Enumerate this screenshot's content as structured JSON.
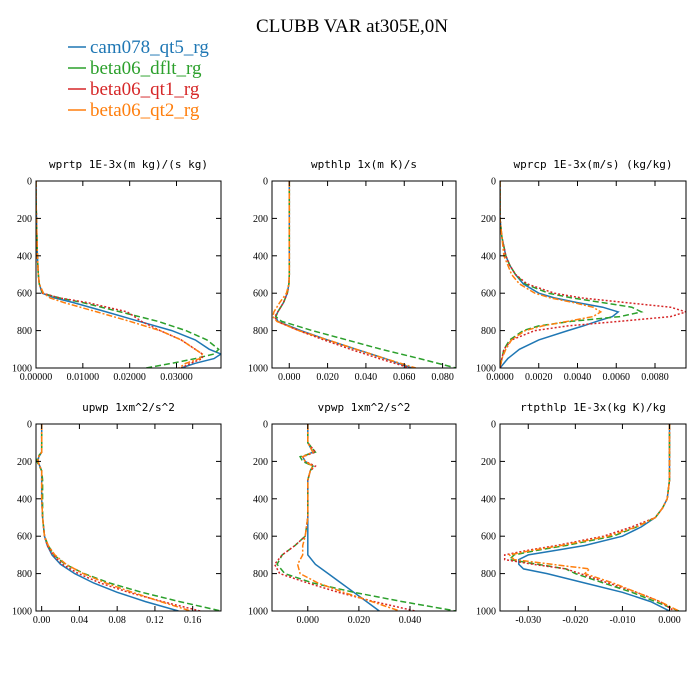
{
  "figure": {
    "title": "CLUBB VAR at305E,0N"
  },
  "legend": [
    {
      "label": "cam078_qt5_rg",
      "color": "#1f77b4",
      "dash": "solid"
    },
    {
      "label": "beta06_dflt_rg",
      "color": "#2ca02c",
      "dash": "dashed"
    },
    {
      "label": "beta06_qt1_rg",
      "color": "#d62728",
      "dash": "dotted"
    },
    {
      "label": "beta06_qt2_rg",
      "color": "#ff7f0e",
      "dash": "dashdot"
    }
  ],
  "chart_data": [
    {
      "type": "line",
      "title": "wprtp  1E-3x(m kg)/(s kg)",
      "xlim": [
        0.0,
        0.0395
      ],
      "ylim": [
        1000,
        0
      ],
      "y_inverted": true,
      "xticks": [
        0.0,
        0.01,
        0.02,
        0.03
      ],
      "xtick_labels": [
        "0.00000",
        "0.01000",
        "0.02000",
        "0.03000"
      ],
      "yticks": [
        0,
        200,
        400,
        600,
        800,
        1000
      ],
      "ytick_labels": [
        "0",
        "200",
        "400",
        "600",
        "800",
        "1000"
      ],
      "y": [
        0,
        100,
        200,
        300,
        400,
        500,
        550,
        600,
        625,
        650,
        700,
        750,
        800,
        850,
        900,
        925,
        950,
        975,
        1000
      ],
      "series": [
        {
          "name": "cam078_qt5_rg",
          "x": [
            0.0,
            0.0,
            0.0001,
            0.0002,
            0.0003,
            0.0005,
            0.0007,
            0.0013,
            0.004,
            0.008,
            0.015,
            0.022,
            0.029,
            0.034,
            0.037,
            0.0395,
            0.038,
            0.034,
            0.031
          ]
        },
        {
          "name": "beta06_dflt_rg",
          "x": [
            0.0,
            0.0,
            0.0001,
            0.0002,
            0.0003,
            0.0005,
            0.0007,
            0.0014,
            0.005,
            0.01,
            0.018,
            0.026,
            0.032,
            0.0365,
            0.039,
            0.038,
            0.034,
            0.029,
            0.0235
          ]
        },
        {
          "name": "beta06_qt1_rg",
          "x": [
            0.0,
            0.0,
            0.0001,
            0.0002,
            0.0003,
            0.0005,
            0.0007,
            0.0014,
            0.005,
            0.011,
            0.0195,
            0.0225,
            0.0265,
            0.031,
            0.034,
            0.0355,
            0.0355,
            0.033,
            0.031
          ]
        },
        {
          "name": "beta06_qt2_rg",
          "x": [
            0.0,
            0.0,
            0.0001,
            0.0002,
            0.0003,
            0.0005,
            0.0007,
            0.0016,
            0.003,
            0.006,
            0.013,
            0.02,
            0.0265,
            0.031,
            0.034,
            0.0355,
            0.035,
            0.032,
            0.0305
          ]
        }
      ]
    },
    {
      "type": "line",
      "title": "wpthlp  1x(m K)/s",
      "xlim": [
        -0.009,
        0.087
      ],
      "ylim": [
        1000,
        0
      ],
      "y_inverted": true,
      "xticks": [
        0.0,
        0.02,
        0.04,
        0.06,
        0.08
      ],
      "xtick_labels": [
        "0.000",
        "0.020",
        "0.040",
        "0.060",
        "0.080"
      ],
      "yticks": [
        0,
        200,
        400,
        600,
        800,
        1000
      ],
      "ytick_labels": [
        "0",
        "200",
        "400",
        "600",
        "800",
        "1000"
      ],
      "y": [
        0,
        100,
        200,
        300,
        400,
        500,
        550,
        600,
        650,
        700,
        725,
        750,
        800,
        850,
        900,
        950,
        1000
      ],
      "series": [
        {
          "name": "cam078_qt5_rg",
          "x": [
            0.0,
            0.0,
            0.0,
            0.0,
            0.0,
            0.0,
            -0.0002,
            -0.001,
            -0.003,
            -0.006,
            -0.007,
            -0.006,
            0.006,
            0.02,
            0.035,
            0.05,
            0.064
          ]
        },
        {
          "name": "beta06_dflt_rg",
          "x": [
            0.0,
            0.0,
            0.0,
            0.0,
            0.0,
            0.0,
            -0.0002,
            -0.001,
            -0.003,
            -0.006,
            -0.007,
            -0.004,
            0.012,
            0.03,
            0.048,
            0.068,
            0.087
          ]
        },
        {
          "name": "beta06_qt1_rg",
          "x": [
            0.0,
            0.0,
            0.0,
            0.0,
            0.0,
            0.0,
            -0.0002,
            -0.001,
            -0.003,
            -0.006,
            -0.0075,
            -0.0065,
            0.005,
            0.018,
            0.032,
            0.047,
            0.063
          ]
        },
        {
          "name": "beta06_qt2_rg",
          "x": [
            0.0,
            0.0,
            0.0,
            0.0,
            0.0,
            0.0,
            -0.0002,
            -0.0015,
            -0.005,
            -0.008,
            -0.0085,
            -0.0065,
            0.005,
            0.02,
            0.035,
            0.05,
            0.066
          ]
        }
      ]
    },
    {
      "type": "line",
      "title": "wprcp  1E-3x(m/s) (kg/kg)",
      "xlim": [
        0.0,
        0.0096
      ],
      "ylim": [
        1000,
        0
      ],
      "y_inverted": true,
      "xticks": [
        0.0,
        0.002,
        0.004,
        0.006,
        0.008
      ],
      "xtick_labels": [
        "0.0000",
        "0.0020",
        "0.0040",
        "0.0060",
        "0.0080"
      ],
      "yticks": [
        0,
        200,
        400,
        600,
        800,
        1000
      ],
      "ytick_labels": [
        "0",
        "200",
        "400",
        "600",
        "800",
        "1000"
      ],
      "y": [
        0,
        200,
        300,
        400,
        450,
        500,
        550,
        600,
        625,
        650,
        675,
        700,
        725,
        750,
        775,
        800,
        850,
        900,
        950,
        1000
      ],
      "series": [
        {
          "name": "cam078_qt5_rg",
          "x": [
            0.0,
            0.0,
            0.0001,
            0.0003,
            0.0005,
            0.0008,
            0.0012,
            0.002,
            0.0028,
            0.004,
            0.0053,
            0.0061,
            0.0058,
            0.005,
            0.0043,
            0.0035,
            0.002,
            0.001,
            0.0004,
            0.0
          ]
        },
        {
          "name": "beta06_dflt_rg",
          "x": [
            0.0,
            0.0,
            0.0001,
            0.0003,
            0.0005,
            0.0008,
            0.0013,
            0.0025,
            0.0037,
            0.0053,
            0.0068,
            0.0073,
            0.0062,
            0.0037,
            0.002,
            0.0012,
            0.0005,
            0.0002,
            0.0001,
            0.0
          ]
        },
        {
          "name": "beta06_qt1_rg",
          "x": [
            0.0,
            0.0,
            0.0001,
            0.0003,
            0.0005,
            0.0008,
            0.0014,
            0.0028,
            0.0042,
            0.0065,
            0.0088,
            0.0096,
            0.0088,
            0.0062,
            0.0035,
            0.0018,
            0.0006,
            0.0002,
            0.0001,
            0.0
          ]
        },
        {
          "name": "beta06_qt2_rg",
          "x": [
            0.0,
            0.0,
            0.0001,
            0.0002,
            0.0004,
            0.0006,
            0.001,
            0.0018,
            0.0026,
            0.0038,
            0.0048,
            0.0052,
            0.0048,
            0.0035,
            0.0022,
            0.0013,
            0.0006,
            0.0003,
            0.0001,
            0.0
          ]
        }
      ]
    },
    {
      "type": "line",
      "title": "upwp  1xm^2/s^2",
      "xlim": [
        -0.006,
        0.19
      ],
      "ylim": [
        1000,
        0
      ],
      "y_inverted": true,
      "xticks": [
        0.0,
        0.04,
        0.08,
        0.12,
        0.16
      ],
      "xtick_labels": [
        "0.00",
        "0.04",
        "0.08",
        "0.12",
        "0.16"
      ],
      "yticks": [
        0,
        200,
        400,
        600,
        800,
        1000
      ],
      "ytick_labels": [
        "0",
        "200",
        "400",
        "600",
        "800",
        "1000"
      ],
      "y": [
        0,
        150,
        175,
        200,
        250,
        300,
        400,
        500,
        600,
        650,
        700,
        750,
        800,
        850,
        900,
        950,
        1000
      ],
      "series": [
        {
          "name": "cam078_qt5_rg",
          "x": [
            0.0,
            0.0,
            -0.003,
            -0.004,
            0.0,
            0.0,
            0.0,
            0.001,
            0.003,
            0.006,
            0.011,
            0.02,
            0.035,
            0.055,
            0.08,
            0.11,
            0.145
          ]
        },
        {
          "name": "beta06_dflt_rg",
          "x": [
            0.0,
            0.0,
            -0.004,
            -0.005,
            0.0,
            0.001,
            0.001,
            0.001,
            0.003,
            0.007,
            0.013,
            0.025,
            0.045,
            0.072,
            0.106,
            0.146,
            0.19
          ]
        },
        {
          "name": "beta06_qt1_rg",
          "x": [
            0.0,
            0.0,
            -0.003,
            -0.004,
            0.0,
            0.0,
            0.0,
            0.001,
            0.003,
            0.006,
            0.012,
            0.022,
            0.039,
            0.062,
            0.092,
            0.128,
            0.168
          ]
        },
        {
          "name": "beta06_qt2_rg",
          "x": [
            0.0,
            0.0,
            -0.003,
            -0.004,
            0.0,
            0.0,
            0.0,
            0.001,
            0.003,
            0.007,
            0.014,
            0.026,
            0.044,
            0.068,
            0.096,
            0.126,
            0.158
          ]
        }
      ]
    },
    {
      "type": "line",
      "title": "vpwp  1xm^2/s^2",
      "xlim": [
        -0.014,
        0.058
      ],
      "ylim": [
        1000,
        0
      ],
      "y_inverted": true,
      "xticks": [
        0.0,
        0.02,
        0.04
      ],
      "xtick_labels": [
        "0.000",
        "0.020",
        "0.040"
      ],
      "yticks": [
        0,
        200,
        400,
        600,
        800,
        1000
      ],
      "ytick_labels": [
        "0",
        "200",
        "400",
        "600",
        "800",
        "1000"
      ],
      "y": [
        0,
        100,
        150,
        175,
        200,
        225,
        250,
        300,
        400,
        500,
        600,
        650,
        700,
        750,
        800,
        850,
        900,
        950,
        1000
      ],
      "series": [
        {
          "name": "cam078_qt5_rg",
          "x": [
            0.0,
            0.0,
            0.002,
            -0.002,
            -0.001,
            0.002,
            0.001,
            0.0,
            0.0,
            0.0,
            0.0,
            0.0,
            0.0,
            0.003,
            0.008,
            0.013,
            0.018,
            0.023,
            0.028
          ]
        },
        {
          "name": "beta06_dflt_rg",
          "x": [
            0.0,
            0.0,
            0.003,
            -0.003,
            -0.002,
            0.002,
            0.001,
            0.0,
            0.0,
            0.0,
            -0.001,
            -0.005,
            -0.01,
            -0.012,
            -0.009,
            0.002,
            0.018,
            0.037,
            0.058
          ]
        },
        {
          "name": "beta06_qt1_rg",
          "x": [
            0.0,
            0.0,
            0.003,
            -0.002,
            -0.001,
            0.003,
            0.001,
            0.0,
            0.0,
            0.0,
            -0.001,
            -0.005,
            -0.01,
            -0.013,
            -0.011,
            0.0,
            0.012,
            0.026,
            0.042
          ]
        },
        {
          "name": "beta06_qt2_rg",
          "x": [
            0.0,
            0.0,
            0.002,
            -0.002,
            -0.001,
            0.002,
            0.001,
            0.0,
            0.0,
            0.0,
            -0.001,
            -0.002,
            -0.002,
            -0.004,
            -0.003,
            0.004,
            0.014,
            0.025,
            0.036
          ]
        }
      ]
    },
    {
      "type": "line",
      "title": "rtpthlp  1E-3x(kg K)/kg",
      "xlim": [
        -0.036,
        0.0035
      ],
      "ylim": [
        1000,
        0
      ],
      "y_inverted": true,
      "xticks": [
        -0.03,
        -0.02,
        -0.01,
        0.0
      ],
      "xtick_labels": [
        "-0.030",
        "-0.020",
        "-0.010",
        "0.000"
      ],
      "yticks": [
        0,
        200,
        400,
        600,
        800,
        1000
      ],
      "ytick_labels": [
        "0",
        "200",
        "400",
        "600",
        "800",
        "1000"
      ],
      "y": [
        0,
        100,
        200,
        300,
        400,
        450,
        500,
        550,
        600,
        650,
        675,
        700,
        725,
        750,
        775,
        800,
        850,
        900,
        950,
        1000
      ],
      "series": [
        {
          "name": "cam078_qt5_rg",
          "x": [
            0.0,
            0.0,
            0.0,
            0.0,
            -0.0005,
            -0.0015,
            -0.003,
            -0.006,
            -0.01,
            -0.018,
            -0.024,
            -0.03,
            -0.032,
            -0.032,
            -0.031,
            -0.026,
            -0.018,
            -0.01,
            -0.004,
            0.0
          ]
        },
        {
          "name": "beta06_dflt_rg",
          "x": [
            0.0,
            0.0,
            0.0,
            0.0,
            -0.0005,
            -0.0015,
            -0.003,
            -0.007,
            -0.012,
            -0.022,
            -0.028,
            -0.033,
            -0.034,
            -0.028,
            -0.022,
            -0.02,
            -0.014,
            -0.008,
            -0.003,
            0.002
          ]
        },
        {
          "name": "beta06_qt1_rg",
          "x": [
            0.0,
            0.0,
            0.0,
            0.0,
            -0.0005,
            -0.0015,
            -0.003,
            -0.008,
            -0.014,
            -0.024,
            -0.03,
            -0.035,
            -0.035,
            -0.029,
            -0.022,
            -0.019,
            -0.013,
            -0.007,
            -0.002,
            0.001
          ]
        },
        {
          "name": "beta06_qt2_rg",
          "x": [
            0.0,
            0.0,
            0.0,
            0.0,
            -0.0005,
            -0.0015,
            -0.003,
            -0.007,
            -0.013,
            -0.023,
            -0.029,
            -0.034,
            -0.033,
            -0.025,
            -0.017,
            -0.018,
            -0.012,
            -0.007,
            -0.002,
            0.002
          ]
        }
      ]
    }
  ]
}
